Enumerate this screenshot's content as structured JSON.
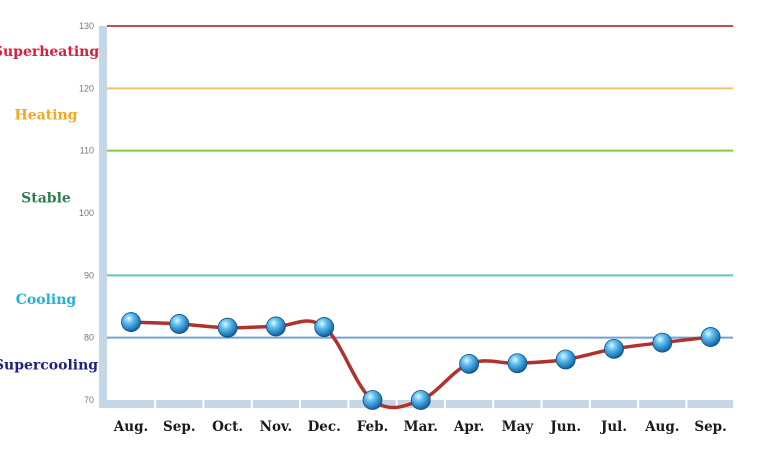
{
  "chart_data": {
    "type": "line",
    "title": "",
    "xlabel": "",
    "ylabel": "",
    "ylim": [
      70,
      130
    ],
    "yticks": [
      70,
      80,
      90,
      100,
      110,
      120,
      130
    ],
    "categories": [
      "Aug.",
      "Sep.",
      "Oct.",
      "Nov.",
      "Dec.",
      "Feb.",
      "Mar.",
      "Apr.",
      "May",
      "Jun.",
      "Jul.",
      "Aug.",
      "Sep."
    ],
    "series": [
      {
        "values": [
          82.5,
          82.2,
          81.6,
          81.8,
          81.7,
          70.0,
          70.0,
          75.8,
          75.9,
          76.5,
          78.2,
          79.2,
          80.1
        ]
      }
    ],
    "thresholds": [
      {
        "value": 130,
        "color": "#c0504d"
      },
      {
        "value": 120,
        "color": "#f5c26b"
      },
      {
        "value": 110,
        "color": "#7ccc47"
      },
      {
        "value": 90,
        "color": "#5cc9b6"
      },
      {
        "value": 80,
        "color": "#6fa3d6"
      }
    ],
    "zones": [
      {
        "label": "Superheating",
        "value": 126,
        "color": "#d81e3a"
      },
      {
        "label": "Heating",
        "value": 115.8,
        "color": "#f2a81d"
      },
      {
        "label": "Stable",
        "value": 102.5,
        "color": "#2e7d4f"
      },
      {
        "label": "Cooling",
        "value": 86.2,
        "color": "#1fb3d9"
      },
      {
        "label": "Supercooling",
        "value": 75.7,
        "color": "#202080"
      }
    ],
    "line_color": "#b0322d",
    "marker_color": "#2a8fd6",
    "axis_color": "#c5d6e6",
    "grid": false,
    "legend": "none"
  }
}
